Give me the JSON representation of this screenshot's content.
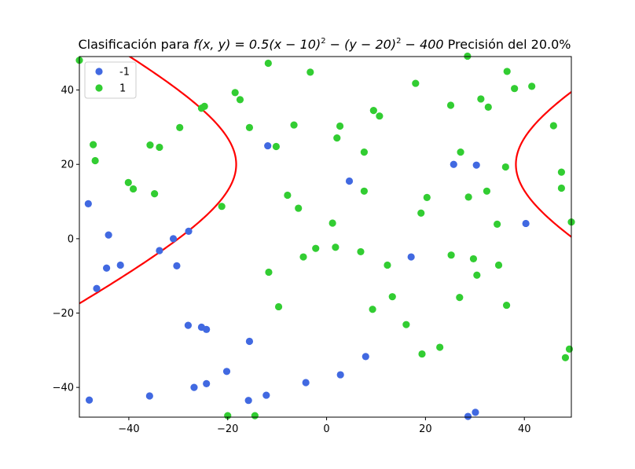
{
  "chart_data": {
    "type": "scatter",
    "title": "Clasificación para f(x, y) = 0.5(x − 10)² − (y − 20)² − 400 Precisión del 20.0%",
    "title_parts": {
      "prefix": "Clasificación para ",
      "formula": "f(x, y) = 0.5(x − 10)",
      "sup1": "2",
      "mid": " − (y − 20)",
      "sup2": "2",
      "tail": " − 400",
      "suffix": " Precisión del 20.0%"
    },
    "xlabel": "",
    "ylabel": "",
    "xlim": [
      -50,
      49.5
    ],
    "ylim": [
      -48,
      49
    ],
    "xticks": [
      -40,
      -20,
      0,
      20,
      40
    ],
    "yticks": [
      -40,
      -20,
      0,
      20,
      40
    ],
    "grid": false,
    "legend_placement": "top-left",
    "series": [
      {
        "name": "-1",
        "color": "#4169e1",
        "points": [
          [
            -48.2,
            9.4
          ],
          [
            -44.1,
            1.0
          ],
          [
            -44.5,
            -7.9
          ],
          [
            -41.7,
            -7.1
          ],
          [
            -46.5,
            -13.4
          ],
          [
            -48,
            -43.4
          ],
          [
            -35.8,
            -42.3
          ],
          [
            -33.8,
            -3.2
          ],
          [
            -31,
            0
          ],
          [
            -30.3,
            -7.3
          ],
          [
            -27.9,
            2.0
          ],
          [
            -28,
            -23.3
          ],
          [
            -26.8,
            -40
          ],
          [
            -25.3,
            -23.8
          ],
          [
            -24.3,
            -24.4
          ],
          [
            -24.3,
            -39
          ],
          [
            -20.2,
            -35.7
          ],
          [
            -15.6,
            -27.6
          ],
          [
            -15.8,
            -43.5
          ],
          [
            -12.2,
            -42.1
          ],
          [
            -11.9,
            25
          ],
          [
            -4.2,
            -38.7
          ],
          [
            2.8,
            -36.6
          ],
          [
            4.6,
            15.5
          ],
          [
            7.9,
            -31.7
          ],
          [
            17.1,
            -4.9
          ],
          [
            25.7,
            20
          ],
          [
            30.3,
            19.8
          ],
          [
            30.1,
            -46.7
          ],
          [
            28.6,
            -47.8
          ],
          [
            40.3,
            4.1
          ]
        ]
      },
      {
        "name": "1",
        "color": "#32cd32",
        "points": [
          [
            -50,
            48
          ],
          [
            -47.2,
            25.3
          ],
          [
            -46.8,
            21
          ],
          [
            -40.1,
            15.1
          ],
          [
            -39.1,
            13.4
          ],
          [
            -35.7,
            25.2
          ],
          [
            -34.8,
            12.1
          ],
          [
            -33.8,
            24.6
          ],
          [
            -29.7,
            29.9
          ],
          [
            -25.3,
            35.1
          ],
          [
            -24.7,
            35.6
          ],
          [
            -21.2,
            8.7
          ],
          [
            -18.5,
            39.3
          ],
          [
            -17.5,
            37.4
          ],
          [
            -15.6,
            29.9
          ],
          [
            -11.8,
            47.2
          ],
          [
            -10.2,
            24.8
          ],
          [
            -7.9,
            11.7
          ],
          [
            -6.6,
            30.6
          ],
          [
            -5.7,
            8.2
          ],
          [
            -4.7,
            -4.9
          ],
          [
            -3.3,
            44.8
          ],
          [
            -2.2,
            -2.6
          ],
          [
            1.2,
            4.2
          ],
          [
            1.8,
            -2.3
          ],
          [
            2.1,
            27.1
          ],
          [
            2.7,
            30.3
          ],
          [
            -11.7,
            -9
          ],
          [
            -9.7,
            -18.3
          ],
          [
            -20,
            -47.6
          ],
          [
            -14.5,
            -47.6
          ],
          [
            6.9,
            -3.5
          ],
          [
            7.6,
            23.3
          ],
          [
            7.6,
            12.8
          ],
          [
            9.5,
            34.5
          ],
          [
            10.7,
            33
          ],
          [
            9.3,
            -19
          ],
          [
            12.3,
            -7.1
          ],
          [
            13.3,
            -15.6
          ],
          [
            16.1,
            -23.1
          ],
          [
            18,
            41.8
          ],
          [
            19.1,
            6.9
          ],
          [
            19.3,
            -31
          ],
          [
            20.3,
            11.1
          ],
          [
            22.9,
            -29.2
          ],
          [
            25.1,
            35.9
          ],
          [
            25.2,
            -4.4
          ],
          [
            27.1,
            23.3
          ],
          [
            26.9,
            -15.8
          ],
          [
            28.5,
            49.1
          ],
          [
            28.7,
            11.2
          ],
          [
            29.7,
            -5.4
          ],
          [
            30.4,
            -9.8
          ],
          [
            31.2,
            37.6
          ],
          [
            32.4,
            12.8
          ],
          [
            32.7,
            35.4
          ],
          [
            34.5,
            3.9
          ],
          [
            34.8,
            -7.1
          ],
          [
            36.2,
            19.3
          ],
          [
            36.5,
            45
          ],
          [
            36.4,
            -17.9
          ],
          [
            38,
            40.4
          ],
          [
            41.5,
            41
          ],
          [
            45.9,
            30.4
          ],
          [
            47.5,
            17.9
          ],
          [
            47.5,
            13.6
          ],
          [
            48.3,
            -32
          ],
          [
            49.1,
            -29.7
          ],
          [
            49.5,
            4.5
          ]
        ]
      }
    ],
    "decision_boundary": {
      "equation": "0.5(x - 10)^2 - (y - 20)^2 - 400 = 0",
      "color": "#ff0000"
    }
  }
}
